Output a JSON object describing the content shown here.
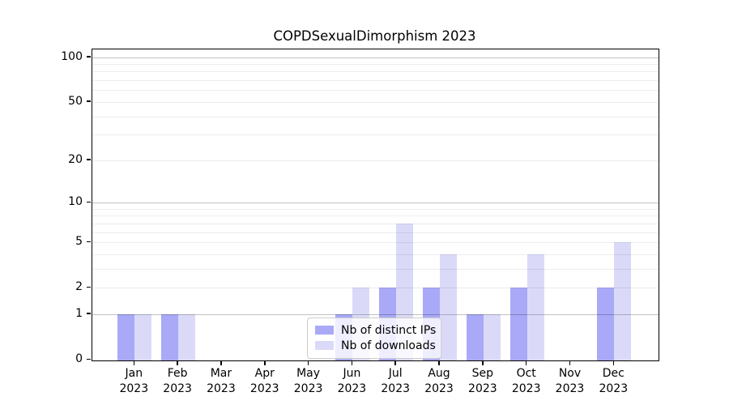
{
  "title": "COPDSexualDimorphism 2023",
  "chart_data": {
    "type": "bar",
    "title": "COPDSexualDimorphism 2023",
    "categories": [
      "Jan 2023",
      "Feb 2023",
      "Mar 2023",
      "Apr 2023",
      "May 2023",
      "Jun 2023",
      "Jul 2023",
      "Aug 2023",
      "Sep 2023",
      "Oct 2023",
      "Nov 2023",
      "Dec 2023"
    ],
    "series": [
      {
        "name": "Nb of distinct IPs",
        "color": "#a9a9f8",
        "values": [
          1,
          1,
          0,
          0,
          0,
          1,
          2,
          2,
          1,
          2,
          0,
          2
        ]
      },
      {
        "name": "Nb of downloads",
        "color": "#dadaf8",
        "values": [
          1,
          1,
          0,
          0,
          0,
          2,
          7,
          4,
          1,
          4,
          0,
          5
        ]
      }
    ],
    "yscale": "log1p",
    "ylim": [
      0,
      113
    ],
    "yticks": [
      0,
      1,
      2,
      5,
      10,
      20,
      50,
      100
    ],
    "major_gridlines": [
      1,
      10,
      100
    ],
    "minor_gridlines": [
      2,
      3,
      4,
      5,
      6,
      7,
      8,
      9,
      20,
      30,
      40,
      50,
      60,
      70,
      80,
      90
    ],
    "grid": true,
    "legend_position": "lower center",
    "xlabel": "",
    "ylabel": ""
  }
}
